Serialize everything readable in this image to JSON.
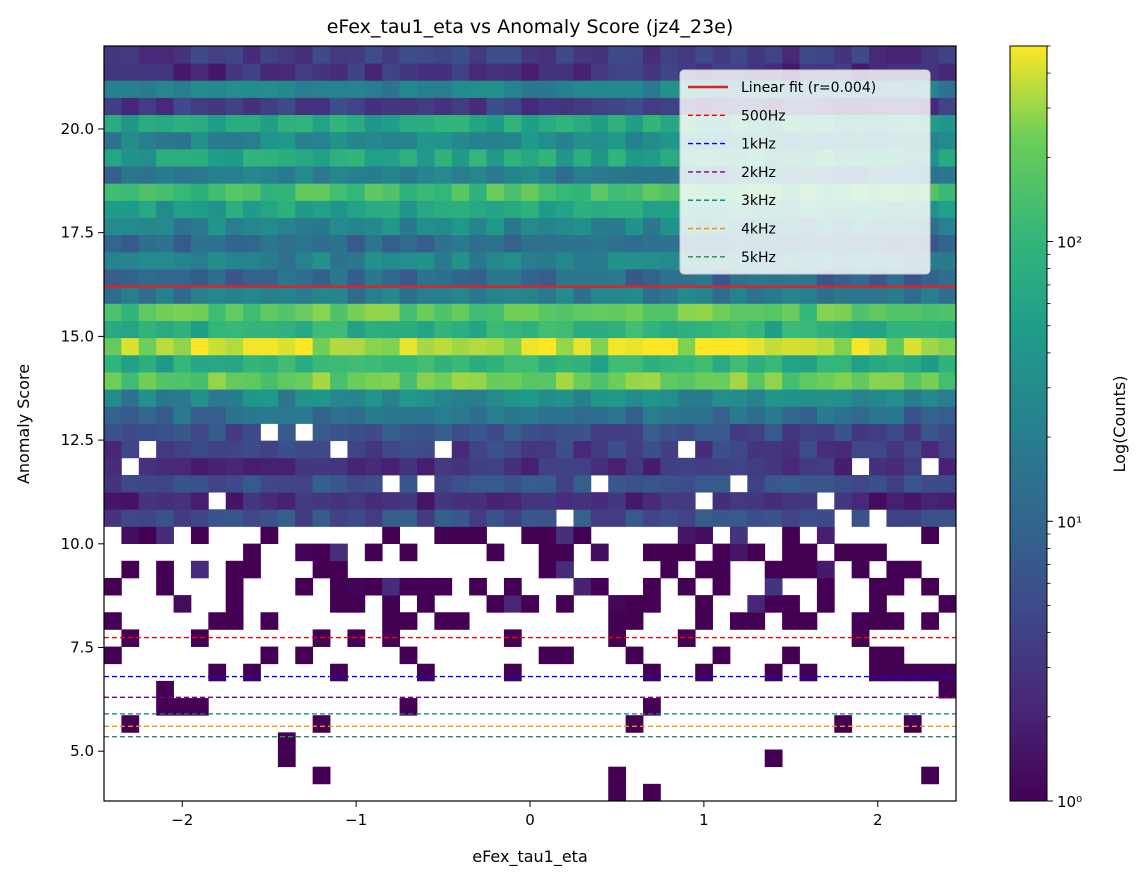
{
  "chart_data": {
    "type": "heatmap",
    "title": "eFex_tau1_eta vs Anomaly Score (jz4_23e)",
    "xlabel": "eFex_tau1_eta",
    "ylabel": "Anomaly Score",
    "xlim": [
      -2.45,
      2.45
    ],
    "ylim": [
      3.8,
      22.0
    ],
    "x_ticks": [
      -2,
      -1,
      0,
      1,
      2
    ],
    "x_tick_labels": [
      "−2",
      "−1",
      "0",
      "1",
      "2"
    ],
    "y_ticks": [
      5.0,
      7.5,
      10.0,
      12.5,
      15.0,
      17.5,
      20.0
    ],
    "y_tick_labels": [
      "5.0",
      "7.5",
      "10.0",
      "12.5",
      "15.0",
      "17.5",
      "20.0"
    ],
    "colorbar": {
      "label": "Log(Counts)",
      "scale": "log",
      "range": [
        1,
        500
      ],
      "ticks": [
        1,
        10,
        100
      ],
      "tick_labels": [
        "10⁰",
        "10¹",
        "10²"
      ],
      "colormap": "viridis"
    },
    "bins": {
      "nx": 49,
      "ny": 44
    },
    "legend": {
      "placement": "top-right",
      "entries": [
        {
          "label": "Linear fit (r=0.004)",
          "color": "#d62728",
          "style": "solid"
        },
        {
          "label": "500Hz",
          "color": "#ff0000",
          "style": "dashed"
        },
        {
          "label": "1kHz",
          "color": "#0000ff",
          "style": "dashed"
        },
        {
          "label": "2kHz",
          "color": "#800080",
          "style": "dashed"
        },
        {
          "label": "3kHz",
          "color": "#008080",
          "style": "dashed"
        },
        {
          "label": "4kHz",
          "color": "#ff8c00",
          "style": "dashed"
        },
        {
          "label": "5kHz",
          "color": "#2e8b57",
          "style": "dashed"
        }
      ]
    },
    "fit_line": {
      "y": 16.2,
      "r": 0.004
    },
    "threshold_lines": [
      {
        "name": "500Hz",
        "y": 7.74,
        "color": "#ff0000"
      },
      {
        "name": "1kHz",
        "y": 6.8,
        "color": "#0000ff"
      },
      {
        "name": "2kHz",
        "y": 6.3,
        "color": "#800080"
      },
      {
        "name": "3kHz",
        "y": 5.9,
        "color": "#008080"
      },
      {
        "name": "4kHz",
        "y": 5.6,
        "color": "#ff8c00"
      },
      {
        "name": "5kHz",
        "y": 5.35,
        "color": "#2e8b57"
      }
    ],
    "row_profile": [
      {
        "y": 21.8,
        "counts": 4
      },
      {
        "y": 21.4,
        "counts": 3
      },
      {
        "y": 21.0,
        "counts": 25
      },
      {
        "y": 20.6,
        "counts": 4
      },
      {
        "y": 20.2,
        "counts": 70
      },
      {
        "y": 19.8,
        "counts": 30
      },
      {
        "y": 19.4,
        "counts": 70
      },
      {
        "y": 19.0,
        "counts": 20
      },
      {
        "y": 18.6,
        "counts": 150
      },
      {
        "y": 18.2,
        "counts": 60
      },
      {
        "y": 17.8,
        "counts": 30
      },
      {
        "y": 17.4,
        "counts": 12
      },
      {
        "y": 17.0,
        "counts": 25
      },
      {
        "y": 16.6,
        "counts": 12
      },
      {
        "y": 16.2,
        "counts": 20
      },
      {
        "y": 15.8,
        "counts": 60
      },
      {
        "y": 15.4,
        "counts": 200
      },
      {
        "y": 15.0,
        "counts": 90
      },
      {
        "y": 14.6,
        "counts": 400
      },
      {
        "y": 14.2,
        "counts": 90
      },
      {
        "y": 13.8,
        "counts": 220
      },
      {
        "y": 13.4,
        "counts": 30
      },
      {
        "y": 13.0,
        "counts": 14
      },
      {
        "y": 12.6,
        "counts": 6
      },
      {
        "y": 12.2,
        "counts": 4
      },
      {
        "y": 11.8,
        "counts": 3
      },
      {
        "y": 11.4,
        "counts": 6
      },
      {
        "y": 11.0,
        "counts": 2.5
      },
      {
        "y": 10.6,
        "counts": 6
      },
      {
        "y": 10.2,
        "counts": 2
      },
      {
        "y": 9.8,
        "counts": 1.5
      },
      {
        "y": 9.4,
        "counts": 1.3
      },
      {
        "y": 9.0,
        "counts": 1.5
      },
      {
        "y": 8.6,
        "counts": 1.3
      },
      {
        "y": 8.2,
        "counts": 1.2
      },
      {
        "y": 7.8,
        "counts": 1
      },
      {
        "y": 7.4,
        "counts": 1
      },
      {
        "y": 7.0,
        "counts": 1
      },
      {
        "y": 6.6,
        "counts": 1
      },
      {
        "y": 6.2,
        "counts": 1
      },
      {
        "y": 5.8,
        "counts": 1
      },
      {
        "y": 5.4,
        "counts": 1
      },
      {
        "y": 5.0,
        "counts": 1
      },
      {
        "y": 4.6,
        "counts": 1
      }
    ]
  }
}
